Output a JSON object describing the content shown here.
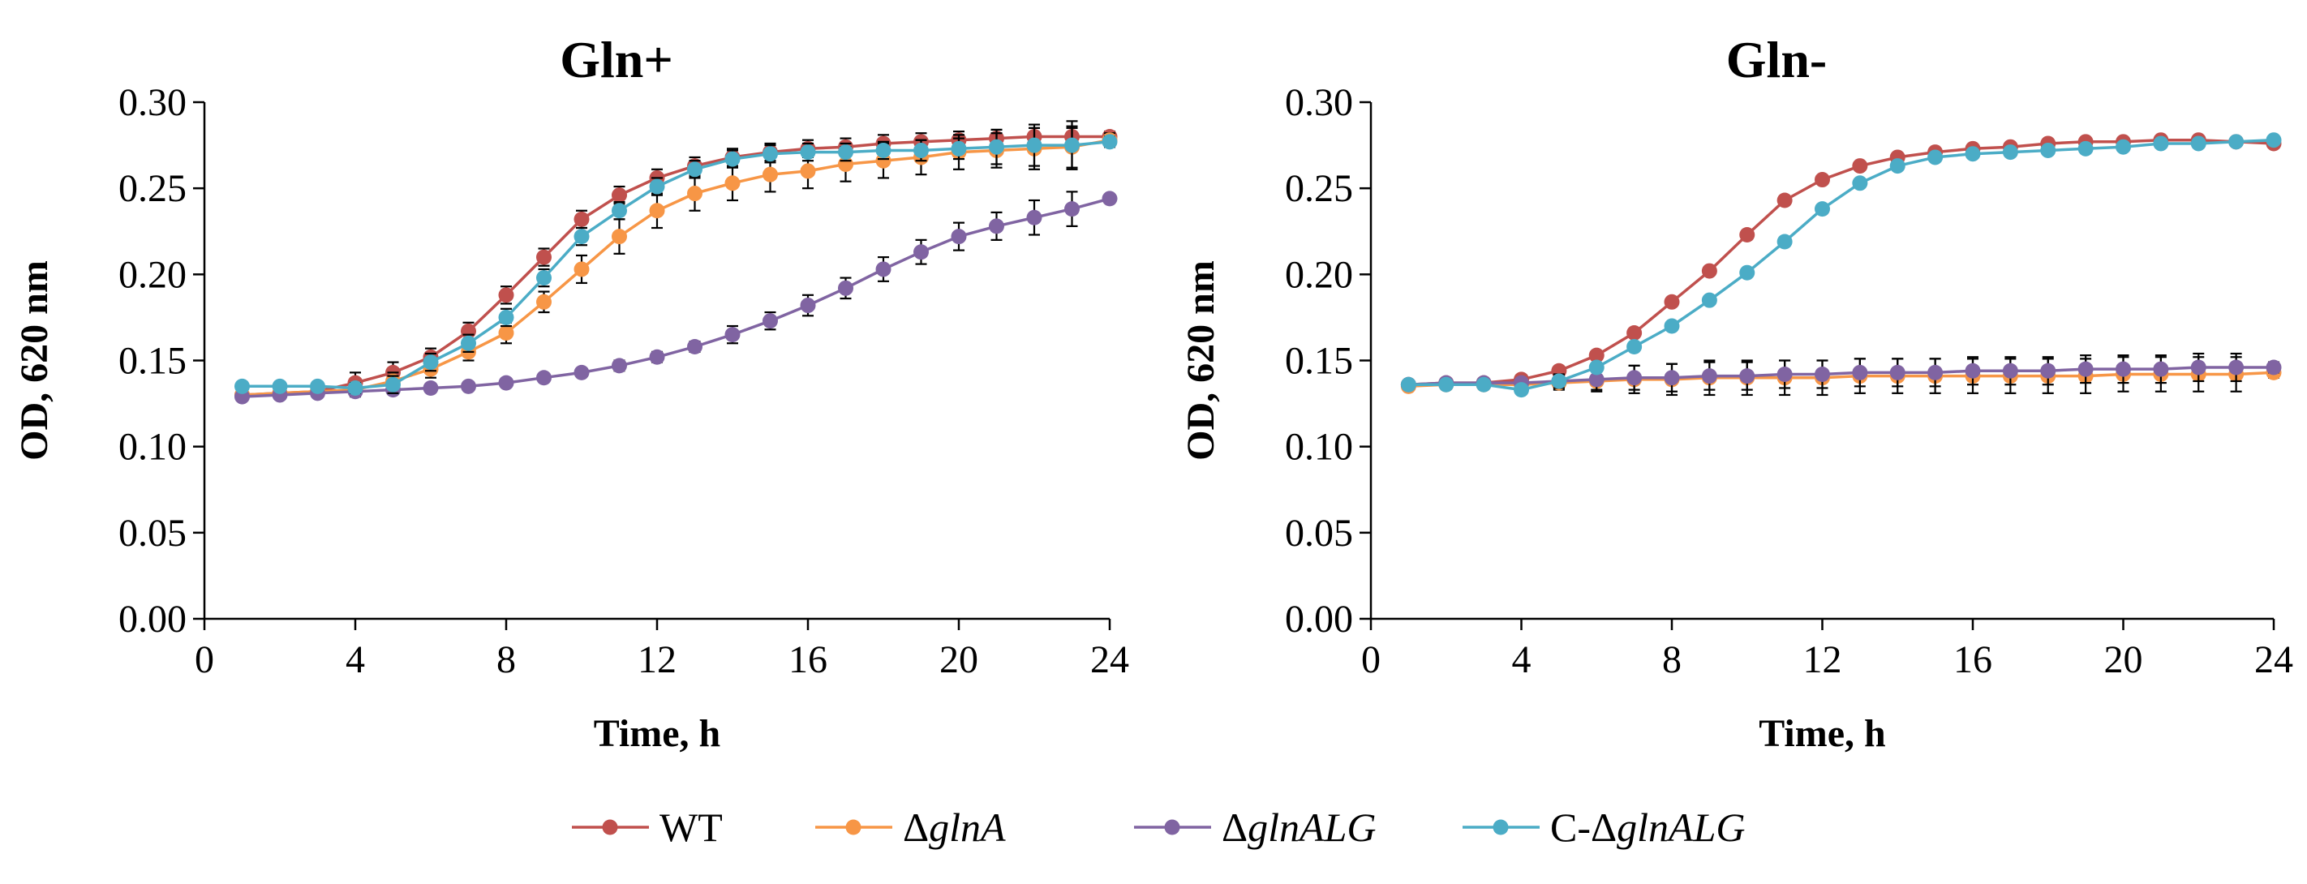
{
  "chart_data": [
    {
      "type": "line",
      "title": "Gln+",
      "xlabel": "Time, h",
      "ylabel": "OD, 620 nm",
      "xlim": [
        0,
        24
      ],
      "ylim": [
        0,
        0.3
      ],
      "xticks": [
        0,
        4,
        8,
        12,
        16,
        20,
        24
      ],
      "xtick_labels": [
        "0",
        "4",
        "8",
        "12",
        "16",
        "20",
        "24"
      ],
      "yticks": [
        0,
        0.05,
        0.1,
        0.15,
        0.2,
        0.25,
        0.3
      ],
      "ytick_labels": [
        "0.00",
        "0.05",
        "0.10",
        "0.15",
        "0.20",
        "0.25",
        "0.30"
      ],
      "x": [
        1,
        2,
        3,
        4,
        5,
        6,
        7,
        8,
        9,
        10,
        11,
        12,
        13,
        14,
        15,
        16,
        17,
        18,
        19,
        20,
        21,
        22,
        23,
        24
      ],
      "series": [
        {
          "name": "WT",
          "color": "#c0504d",
          "values": [
            0.13,
            0.131,
            0.132,
            0.137,
            0.143,
            0.152,
            0.167,
            0.188,
            0.21,
            0.232,
            0.246,
            0.256,
            0.263,
            0.268,
            0.271,
            0.273,
            0.274,
            0.276,
            0.277,
            0.278,
            0.279,
            0.28,
            0.28,
            0.28
          ],
          "errors": [
            0.002,
            0.002,
            0.002,
            0.006,
            0.006,
            0.005,
            0.005,
            0.005,
            0.005,
            0.005,
            0.005,
            0.005,
            0.005,
            0.005,
            0.005,
            0.005,
            0.005,
            0.005,
            0.005,
            0.005,
            0.005,
            0.005,
            0.005,
            0.003
          ]
        },
        {
          "name": "ΔglnA",
          "color": "#f79646",
          "values": [
            0.13,
            0.131,
            0.132,
            0.133,
            0.138,
            0.145,
            0.155,
            0.166,
            0.184,
            0.203,
            0.222,
            0.237,
            0.247,
            0.253,
            0.258,
            0.26,
            0.264,
            0.266,
            0.268,
            0.271,
            0.272,
            0.273,
            0.274,
            0.278
          ],
          "errors": [
            0.002,
            0.002,
            0.002,
            0.004,
            0.005,
            0.005,
            0.005,
            0.006,
            0.006,
            0.008,
            0.01,
            0.01,
            0.01,
            0.01,
            0.01,
            0.01,
            0.01,
            0.01,
            0.01,
            0.01,
            0.01,
            0.012,
            0.012,
            0.004
          ]
        },
        {
          "name": "ΔglnALG",
          "color": "#8064a2",
          "values": [
            0.129,
            0.13,
            0.131,
            0.132,
            0.133,
            0.134,
            0.135,
            0.137,
            0.14,
            0.143,
            0.147,
            0.152,
            0.158,
            0.165,
            0.173,
            0.182,
            0.192,
            0.203,
            0.213,
            0.222,
            0.228,
            0.233,
            0.238,
            0.244
          ],
          "errors": [
            0.002,
            0.002,
            0.002,
            0.002,
            0.002,
            0.002,
            0.002,
            0.002,
            0.002,
            0.002,
            0.003,
            0.003,
            0.003,
            0.005,
            0.005,
            0.006,
            0.006,
            0.007,
            0.007,
            0.008,
            0.008,
            0.01,
            0.01,
            0.002
          ]
        },
        {
          "name": "C-ΔglnALG",
          "color": "#4bacc6",
          "values": [
            0.135,
            0.135,
            0.135,
            0.134,
            0.136,
            0.149,
            0.16,
            0.175,
            0.198,
            0.222,
            0.237,
            0.251,
            0.261,
            0.267,
            0.27,
            0.271,
            0.271,
            0.272,
            0.272,
            0.273,
            0.274,
            0.275,
            0.275,
            0.277
          ],
          "errors": [
            0.002,
            0.002,
            0.002,
            0.003,
            0.005,
            0.005,
            0.005,
            0.005,
            0.005,
            0.005,
            0.005,
            0.005,
            0.005,
            0.005,
            0.005,
            0.005,
            0.005,
            0.005,
            0.006,
            0.006,
            0.01,
            0.012,
            0.014,
            0.003
          ]
        }
      ]
    },
    {
      "type": "line",
      "title": "Gln-",
      "xlabel": "Time, h",
      "ylabel": "OD, 620 nm",
      "xlim": [
        0,
        24
      ],
      "ylim": [
        0,
        0.3
      ],
      "xticks": [
        0,
        4,
        8,
        12,
        16,
        20,
        24
      ],
      "xtick_labels": [
        "0",
        "4",
        "8",
        "12",
        "16",
        "20",
        "24"
      ],
      "yticks": [
        0,
        0.05,
        0.1,
        0.15,
        0.2,
        0.25,
        0.3
      ],
      "ytick_labels": [
        "0.00",
        "0.05",
        "0.10",
        "0.15",
        "0.20",
        "0.25",
        "0.30"
      ],
      "x": [
        1,
        2,
        3,
        4,
        5,
        6,
        7,
        8,
        9,
        10,
        11,
        12,
        13,
        14,
        15,
        16,
        17,
        18,
        19,
        20,
        21,
        22,
        23,
        24
      ],
      "series": [
        {
          "name": "WT",
          "color": "#c0504d",
          "values": [
            0.136,
            0.137,
            0.137,
            0.139,
            0.144,
            0.153,
            0.166,
            0.184,
            0.202,
            0.223,
            0.243,
            0.255,
            0.263,
            0.268,
            0.271,
            0.273,
            0.274,
            0.276,
            0.277,
            0.277,
            0.278,
            0.278,
            0.277,
            0.276
          ],
          "errors": [
            0.002,
            0.002,
            0.002,
            0.002,
            0.002,
            0.002,
            0.002,
            0.002,
            0.002,
            0.002,
            0.002,
            0.002,
            0.002,
            0.002,
            0.002,
            0.002,
            0.002,
            0.002,
            0.002,
            0.002,
            0.002,
            0.002,
            0.002,
            0.002
          ]
        },
        {
          "name": "ΔglnA",
          "color": "#f79646",
          "values": [
            0.135,
            0.136,
            0.136,
            0.136,
            0.137,
            0.138,
            0.139,
            0.139,
            0.14,
            0.14,
            0.14,
            0.14,
            0.141,
            0.141,
            0.141,
            0.141,
            0.141,
            0.141,
            0.141,
            0.142,
            0.142,
            0.142,
            0.142,
            0.143
          ],
          "errors": [
            0.002,
            0.002,
            0.002,
            0.002,
            0.004,
            0.006,
            0.008,
            0.009,
            0.01,
            0.01,
            0.01,
            0.01,
            0.01,
            0.01,
            0.01,
            0.01,
            0.01,
            0.01,
            0.01,
            0.01,
            0.01,
            0.01,
            0.01,
            0.003
          ]
        },
        {
          "name": "ΔglnALG",
          "color": "#8064a2",
          "values": [
            0.136,
            0.137,
            0.137,
            0.137,
            0.138,
            0.139,
            0.14,
            0.14,
            0.141,
            0.141,
            0.142,
            0.142,
            0.143,
            0.143,
            0.143,
            0.144,
            0.144,
            0.144,
            0.145,
            0.145,
            0.145,
            0.146,
            0.146,
            0.146
          ],
          "errors": [
            0.002,
            0.002,
            0.002,
            0.002,
            0.004,
            0.006,
            0.007,
            0.008,
            0.008,
            0.008,
            0.008,
            0.008,
            0.008,
            0.008,
            0.008,
            0.008,
            0.008,
            0.008,
            0.008,
            0.008,
            0.008,
            0.008,
            0.008,
            0.003
          ]
        },
        {
          "name": "C-ΔglnALG",
          "color": "#4bacc6",
          "values": [
            0.136,
            0.136,
            0.136,
            0.133,
            0.138,
            0.146,
            0.158,
            0.17,
            0.185,
            0.201,
            0.219,
            0.238,
            0.253,
            0.263,
            0.268,
            0.27,
            0.271,
            0.272,
            0.273,
            0.274,
            0.276,
            0.276,
            0.277,
            0.278
          ],
          "errors": [
            0.002,
            0.002,
            0.002,
            0.002,
            0.002,
            0.002,
            0.002,
            0.002,
            0.002,
            0.002,
            0.002,
            0.002,
            0.002,
            0.002,
            0.002,
            0.002,
            0.002,
            0.002,
            0.002,
            0.002,
            0.002,
            0.002,
            0.002,
            0.002
          ]
        }
      ]
    }
  ],
  "legend": {
    "placement": "bottom-center",
    "items": [
      {
        "prefix": "",
        "italic": "",
        "text": "WT",
        "color": "#c0504d"
      },
      {
        "prefix": "Δ",
        "italic": "glnA",
        "text": "ΔglnA",
        "color": "#f79646"
      },
      {
        "prefix": "Δ",
        "italic": "glnALG",
        "text": "ΔglnALG",
        "color": "#8064a2"
      },
      {
        "prefix": "C-Δ",
        "italic": "glnALG",
        "text": "C-ΔglnALG",
        "color": "#4bacc6"
      }
    ]
  }
}
